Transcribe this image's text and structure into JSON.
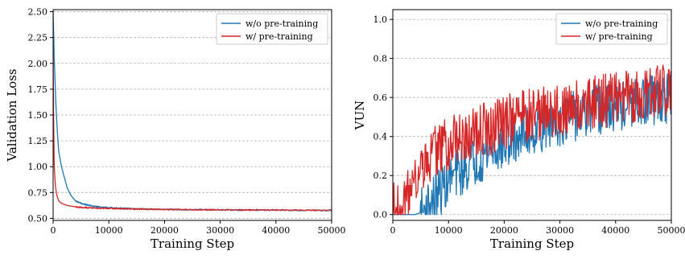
{
  "chart_data": [
    {
      "type": "line",
      "xlabel": "Training Step",
      "ylabel": "Validation Loss",
      "xlim": [
        0,
        50000
      ],
      "ylim": [
        0.48,
        2.52
      ],
      "xticks": [
        0,
        10000,
        20000,
        30000,
        40000,
        50000
      ],
      "yticks": [
        0.5,
        0.75,
        1.0,
        1.25,
        1.5,
        1.75,
        2.0,
        2.25,
        2.5
      ],
      "xtick_labels": [
        "0",
        "10000",
        "20000",
        "30000",
        "40000",
        "50000"
      ],
      "ytick_labels": [
        "0.50",
        "0.75",
        "1.00",
        "1.25",
        "1.50",
        "1.75",
        "2.00",
        "2.25",
        "2.50"
      ],
      "grid": "horizontal dashed",
      "legend_position": "top-right",
      "series": [
        {
          "name": "w/o pre-training",
          "color": "#1f77b4",
          "x": [
            0,
            200,
            500,
            800,
            1000,
            1500,
            2000,
            2500,
            3000,
            3500,
            4000,
            5000,
            6000,
            7000,
            8000,
            10000,
            12000,
            15000,
            20000,
            25000,
            30000,
            35000,
            40000,
            45000,
            50000
          ],
          "y": [
            2.5,
            2.05,
            1.6,
            1.3,
            1.15,
            1.0,
            0.9,
            0.8,
            0.74,
            0.7,
            0.67,
            0.645,
            0.63,
            0.62,
            0.612,
            0.603,
            0.598,
            0.592,
            0.587,
            0.584,
            0.582,
            0.58,
            0.579,
            0.578,
            0.577
          ]
        },
        {
          "name": "w/ pre-training",
          "color": "#d62728",
          "x": [
            0,
            100,
            200,
            400,
            600,
            800,
            1000,
            1500,
            2000,
            2500,
            3000,
            4000,
            5000,
            7000,
            10000,
            15000,
            20000,
            30000,
            40000,
            50000
          ],
          "y": [
            2.1,
            1.4,
            1.0,
            0.82,
            0.74,
            0.7,
            0.67,
            0.645,
            0.635,
            0.625,
            0.62,
            0.612,
            0.606,
            0.6,
            0.596,
            0.59,
            0.586,
            0.582,
            0.58,
            0.578
          ]
        }
      ]
    },
    {
      "type": "line",
      "xlabel": "Training Step",
      "ylabel": "VUN",
      "xlim": [
        0,
        50000
      ],
      "ylim": [
        -0.03,
        1.05
      ],
      "xticks": [
        0,
        10000,
        20000,
        30000,
        40000,
        50000
      ],
      "yticks": [
        0.0,
        0.2,
        0.4,
        0.6,
        0.8,
        1.0
      ],
      "xtick_labels": [
        "0",
        "10000",
        "20000",
        "30000",
        "40000",
        "50000"
      ],
      "ytick_labels": [
        "0.0",
        "0.2",
        "0.4",
        "0.6",
        "0.8",
        "1.0"
      ],
      "grid": "horizontal dashed",
      "legend_position": "top-right",
      "series": [
        {
          "name": "w/o pre-training",
          "color": "#1f77b4",
          "x": [
            0,
            2000,
            4000,
            5000,
            6000,
            7000,
            8000,
            9000,
            10000,
            12000,
            14000,
            16000,
            18000,
            20000,
            22000,
            24000,
            26000,
            28000,
            30000,
            32000,
            34000,
            36000,
            38000,
            40000,
            42000,
            44000,
            46000,
            48000,
            50000
          ],
          "y": [
            0.0,
            0.0,
            0.0,
            0.01,
            0.03,
            0.06,
            0.1,
            0.14,
            0.18,
            0.22,
            0.26,
            0.3,
            0.33,
            0.36,
            0.39,
            0.42,
            0.44,
            0.46,
            0.48,
            0.5,
            0.51,
            0.53,
            0.54,
            0.55,
            0.56,
            0.57,
            0.58,
            0.59,
            0.6
          ],
          "noise": 0.13,
          "noise_start": 5000
        },
        {
          "name": "w/ pre-training",
          "color": "#d62728",
          "x": [
            0,
            1000,
            2000,
            3000,
            4000,
            5000,
            6000,
            7000,
            8000,
            10000,
            12000,
            14000,
            16000,
            18000,
            20000,
            22000,
            24000,
            26000,
            28000,
            30000,
            32000,
            34000,
            36000,
            38000,
            40000,
            42000,
            44000,
            46000,
            48000,
            50000
          ],
          "y": [
            0.02,
            0.04,
            0.07,
            0.1,
            0.14,
            0.2,
            0.26,
            0.3,
            0.33,
            0.37,
            0.39,
            0.41,
            0.43,
            0.45,
            0.47,
            0.49,
            0.5,
            0.52,
            0.53,
            0.54,
            0.55,
            0.56,
            0.57,
            0.58,
            0.59,
            0.6,
            0.61,
            0.62,
            0.63,
            0.64
          ],
          "noise": 0.14,
          "noise_start": 0
        }
      ]
    }
  ]
}
